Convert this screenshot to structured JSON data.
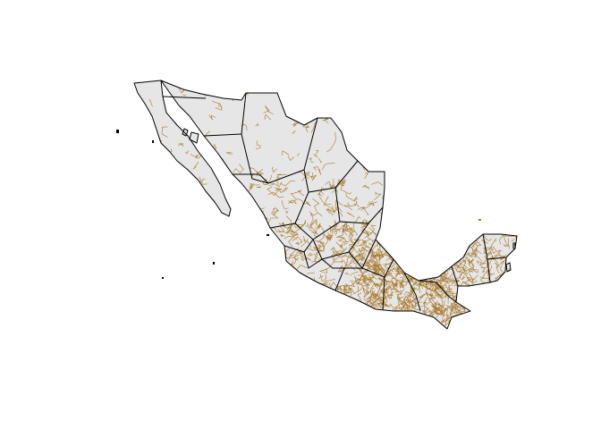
{
  "map": {
    "subject": "Mexico",
    "colors": {
      "background": "#ffffff",
      "land_fill": "#e6e6e6",
      "state_border": "#000000",
      "municipal_border": "#a8792a"
    }
  }
}
